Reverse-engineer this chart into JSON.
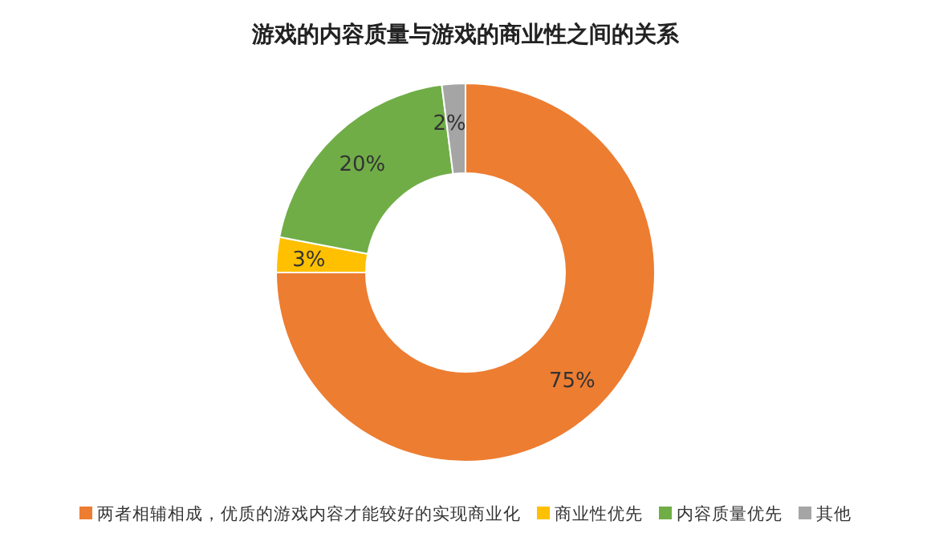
{
  "chart_data": {
    "type": "donut",
    "title": "游戏的内容质量与游戏的商业性之间的关系",
    "categories": [
      "两者相辅相成，优质的游戏内容才能较好的实现商业化",
      "商业性优先",
      "内容质量优先",
      "其他"
    ],
    "values": [
      75,
      3,
      20,
      2
    ],
    "colors": [
      "#ed7d31",
      "#ffc000",
      "#70ad47",
      "#a5a5a5"
    ],
    "value_labels": [
      "75%",
      "3%",
      "20%",
      "2%"
    ],
    "legend": "bottom"
  }
}
